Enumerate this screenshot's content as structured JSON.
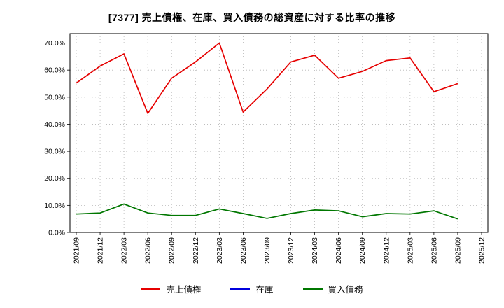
{
  "chart_data": {
    "type": "line",
    "title": "[7377]  売上債権、在庫、買入債務の総資産に対する比率の推移",
    "categories": [
      "2021/09",
      "2021/12",
      "2022/03",
      "2022/06",
      "2022/09",
      "2022/12",
      "2023/03",
      "2023/06",
      "2023/09",
      "2023/12",
      "2024/03",
      "2024/06",
      "2024/09",
      "2024/12",
      "2025/03",
      "2025/06",
      "2025/09",
      "2025/12"
    ],
    "series": [
      {
        "key": "accounts-receivable",
        "name": "売上債権",
        "color": "#e60000",
        "values": [
          55.2,
          61.5,
          66.0,
          44.0,
          57.0,
          63.0,
          70.0,
          44.5,
          53.0,
          63.0,
          65.5,
          57.0,
          59.5,
          63.5,
          64.5,
          52.0,
          55.0,
          null
        ]
      },
      {
        "key": "inventory",
        "name": "在庫",
        "color": "#0000dd",
        "values": [
          null,
          null,
          null,
          null,
          null,
          null,
          null,
          null,
          null,
          null,
          null,
          null,
          null,
          null,
          null,
          null,
          null,
          null
        ]
      },
      {
        "key": "accounts-payable",
        "name": "買入債務",
        "color": "#007700",
        "values": [
          6.8,
          7.2,
          10.5,
          7.2,
          6.3,
          6.3,
          8.7,
          7.0,
          5.2,
          7.0,
          8.3,
          8.0,
          5.8,
          7.0,
          6.8,
          8.0,
          5.0,
          null
        ]
      }
    ],
    "xlabel": "",
    "ylabel": "",
    "ylim": [
      0,
      70
    ],
    "yticks": [
      0,
      10,
      20,
      30,
      40,
      50,
      60,
      70
    ],
    "ytick_labels": [
      "0.0%",
      "10.0%",
      "20.0%",
      "30.0%",
      "40.0%",
      "50.0%",
      "60.0%",
      "70.0%"
    ],
    "grid": true,
    "legend_position": "bottom"
  }
}
